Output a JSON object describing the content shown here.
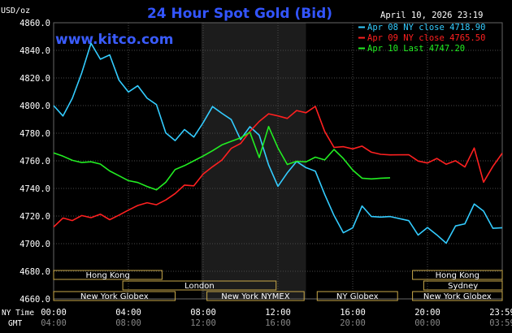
{
  "chart_data": {
    "type": "line",
    "title": "24 Hour Spot Gold (Bid)",
    "watermark": "www.kitco.com",
    "ylabel": "USD/oz",
    "date_label": "April 10, 2026 23:19",
    "ylim": [
      4660,
      4860
    ],
    "y_ticks": [
      "4860.0",
      "4840.0",
      "4820.0",
      "4800.0",
      "4780.0",
      "4760.0",
      "4740.0",
      "4720.0",
      "4700.0",
      "4680.0",
      "4660.0"
    ],
    "x_row_labels": {
      "ny_time": "NY Time",
      "gmt": "GMT"
    },
    "x_ticks_ny": [
      "00:00",
      "04:00",
      "08:00",
      "12:00",
      "16:00",
      "20:00",
      "23:59"
    ],
    "x_ticks_gmt": [
      "04:00",
      "08:00",
      "12:00",
      "16:00",
      "20:00",
      "00:00",
      "03:59"
    ],
    "shaded_region_hours": [
      7.9,
      13.5
    ],
    "sessions": [
      {
        "label": "Hong Kong",
        "start": 0,
        "end": 5.8
      },
      {
        "label": "London",
        "start": 3.7,
        "end": 11.9
      },
      {
        "label": "New York Globex",
        "start": 0,
        "end": 6.5
      },
      {
        "label": "New York NYMEX",
        "start": 8.2,
        "end": 13.4
      },
      {
        "label": "NY Globex",
        "start": 14.1,
        "end": 18.4
      },
      {
        "label": "Hong Kong",
        "start": 19.2,
        "end": 24
      },
      {
        "label": "Sydney",
        "start": 19.8,
        "end": 24
      },
      {
        "label": "New York Globex",
        "start": 19.2,
        "end": 24
      }
    ],
    "series": [
      {
        "name": "Apr 08 NY close 4718.90",
        "color": "#33ccff",
        "x": [
          0,
          0.5,
          1,
          1.5,
          2,
          2.5,
          3,
          3.5,
          4,
          4.5,
          5,
          5.5,
          6,
          6.5,
          7,
          7.5,
          8,
          8.5,
          9,
          9.5,
          10,
          10.5,
          11,
          11.5,
          12,
          12.5,
          13,
          13.5,
          14,
          14.5,
          15,
          15.5,
          16,
          16.5,
          17,
          17.5,
          18,
          19,
          19.5,
          20,
          20.5,
          21,
          21.5,
          22,
          22.5,
          23,
          23.5,
          24
        ],
        "values": [
          4800,
          4793,
          4806,
          4824,
          4845,
          4833,
          4836,
          4818,
          4810,
          4815,
          4806,
          4801,
          4780,
          4774,
          4782,
          4777,
          4788,
          4800,
          4795,
          4790,
          4775,
          4784,
          4778,
          4757,
          4742,
          4752,
          4760,
          4755,
          4752,
          4735,
          4720,
          4708,
          4712,
          4728,
          4720,
          4719,
          4719,
          4716,
          4706,
          4712,
          4707,
          4701,
          4713,
          4714,
          4728,
          4723,
          4711,
          4712
        ]
      },
      {
        "name": "Apr 09 NY close 4765.50",
        "color": "#ff2020",
        "x": [
          0,
          0.5,
          1,
          1.5,
          2,
          2.5,
          3,
          3.5,
          4,
          4.5,
          5,
          5.5,
          6,
          6.5,
          7,
          7.5,
          8,
          8.5,
          9,
          9.5,
          10,
          10.5,
          11,
          11.5,
          12,
          12.5,
          13,
          13.5,
          14,
          14.5,
          15,
          15.5,
          16,
          16.5,
          17,
          17.5,
          18,
          19,
          19.5,
          20,
          20.5,
          21,
          21.5,
          22,
          22.5,
          23,
          23.5,
          24
        ],
        "values": [
          4712,
          4718,
          4716,
          4720,
          4719,
          4722,
          4718,
          4721,
          4724,
          4727,
          4729,
          4728,
          4732,
          4737,
          4743,
          4742,
          4750,
          4755,
          4760,
          4769,
          4773,
          4782,
          4789,
          4794,
          4792,
          4790,
          4796,
          4795,
          4800,
          4782,
          4770,
          4770,
          4768,
          4770,
          4766,
          4765,
          4765,
          4765,
          4760,
          4758,
          4761,
          4757,
          4760,
          4756,
          4770,
          4745,
          4756,
          4765
        ]
      },
      {
        "name": "Apr 10 Last 4747.20",
        "color": "#22ee22",
        "x": [
          0,
          0.5,
          1,
          1.5,
          2,
          2.5,
          3,
          3.5,
          4,
          4.5,
          5,
          5.5,
          6,
          6.5,
          7,
          7.5,
          8,
          8.5,
          9,
          9.5,
          10,
          10.5,
          11,
          11.5,
          12,
          12.5,
          13,
          13.5,
          14,
          14.5,
          15,
          15.5,
          16,
          16.5,
          17,
          17.5,
          18
        ],
        "values": [
          4766,
          4764,
          4761,
          4759,
          4759,
          4757,
          4752,
          4749,
          4746,
          4745,
          4742,
          4739,
          4744,
          4753,
          4756,
          4760,
          4764,
          4768,
          4772,
          4774,
          4776,
          4780,
          4762,
          4785,
          4770,
          4758,
          4760,
          4759,
          4762,
          4760,
          4768,
          4762,
          4754,
          4748,
          4747,
          4747,
          4747
        ]
      }
    ]
  }
}
